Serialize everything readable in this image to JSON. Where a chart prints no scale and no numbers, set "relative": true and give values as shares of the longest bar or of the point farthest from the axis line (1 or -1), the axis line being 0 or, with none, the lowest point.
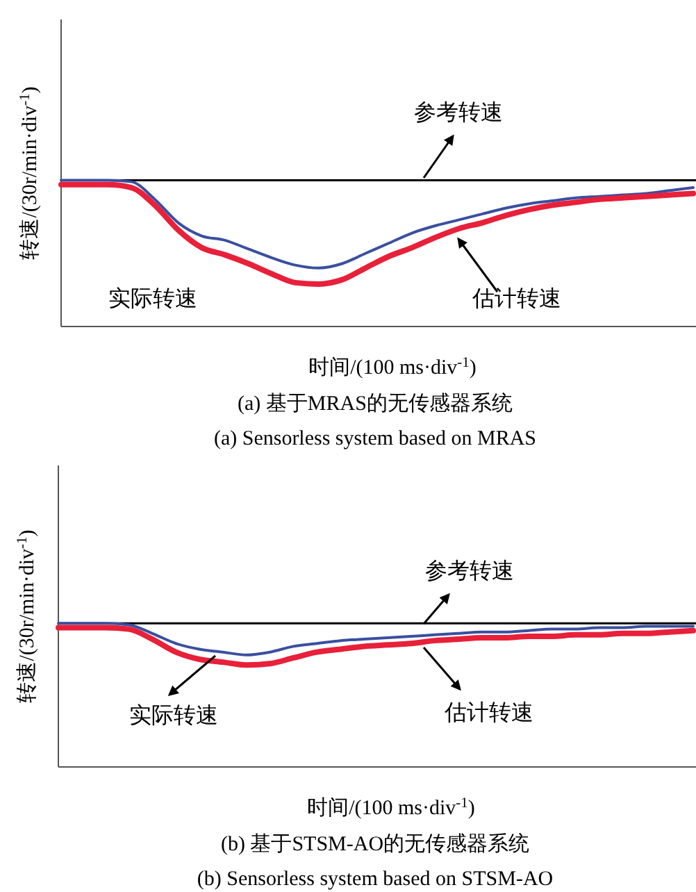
{
  "chart_data": [
    {
      "type": "line",
      "relative": true,
      "title": "(a) 基于MRAS的无传感器系统",
      "subtitle": "(a) Sensorless system based on MRAS",
      "xlabel": "时间/(100 ms·div$^{-1}$)",
      "ylabel": "转速/(30r/min·div$^{-1}$)",
      "annotations": [
        "实际转速",
        "估计转速"
      ],
      "categories": [
        null,
        null,
        null,
        null,
        null,
        null,
        null,
        null,
        null,
        null,
        null,
        null,
        null,
        null,
        null,
        null,
        null,
        null,
        null,
        null,
        null,
        null,
        null,
        null,
        null,
        null,
        null,
        null
      ],
      "ref_lines": [
        {
          "axis": "y",
          "value": 1,
          "label": "参考转速",
          "color": "#000000"
        }
      ],
      "series": [
        {
          "color": "#3a4fa0",
          "values": [
            1,
            1,
            1,
            0.99,
            0.87,
            0.71,
            0.62,
            0.59,
            0.53,
            0.47,
            0.42,
            0.4,
            0.43,
            0.5,
            0.57,
            0.64,
            0.69,
            0.73,
            0.77,
            0.81,
            0.84,
            0.86,
            0.88,
            0.89,
            0.9,
            0.91,
            0.93,
            0.95
          ]
        },
        {
          "color": "#e8203a",
          "values": [
            0.97,
            0.97,
            0.97,
            0.95,
            0.83,
            0.66,
            0.54,
            0.49,
            0.43,
            0.36,
            0.3,
            0.29,
            0.32,
            0.4,
            0.48,
            0.54,
            0.61,
            0.67,
            0.71,
            0.76,
            0.8,
            0.83,
            0.85,
            0.87,
            0.88,
            0.89,
            0.9,
            0.91
          ]
        }
      ]
    },
    {
      "type": "line",
      "relative": true,
      "title": "(b) 基于STSM-AO的无传感器系统",
      "subtitle": "(b) Sensorless system based on STSM-AO",
      "xlabel": "时间/(100 ms·div$^{-1}$)",
      "ylabel": "转速/(30r/min·div$^{-1}$)",
      "annotations": [
        "实际转速",
        "估计转速"
      ],
      "categories": [
        null,
        null,
        null,
        null,
        null,
        null,
        null,
        null,
        null,
        null,
        null,
        null,
        null,
        null,
        null,
        null,
        null,
        null,
        null,
        null,
        null,
        null,
        null,
        null,
        null,
        null,
        null,
        null
      ],
      "ref_lines": [
        {
          "axis": "y",
          "value": 1,
          "label": "参考转速",
          "color": "#000000"
        }
      ],
      "series": [
        {
          "color": "#3a4fa0",
          "values": [
            1,
            1,
            1,
            0.99,
            0.93,
            0.86,
            0.82,
            0.8,
            0.78,
            0.8,
            0.84,
            0.86,
            0.88,
            0.89,
            0.9,
            0.91,
            0.92,
            0.93,
            0.94,
            0.94,
            0.95,
            0.96,
            0.96,
            0.97,
            0.97,
            0.98,
            0.98,
            0.98
          ]
        },
        {
          "color": "#e8203a",
          "values": [
            0.97,
            0.97,
            0.97,
            0.96,
            0.89,
            0.8,
            0.75,
            0.73,
            0.71,
            0.72,
            0.76,
            0.8,
            0.82,
            0.84,
            0.85,
            0.86,
            0.88,
            0.89,
            0.9,
            0.9,
            0.91,
            0.91,
            0.92,
            0.92,
            0.93,
            0.93,
            0.94,
            0.95
          ]
        }
      ]
    }
  ]
}
